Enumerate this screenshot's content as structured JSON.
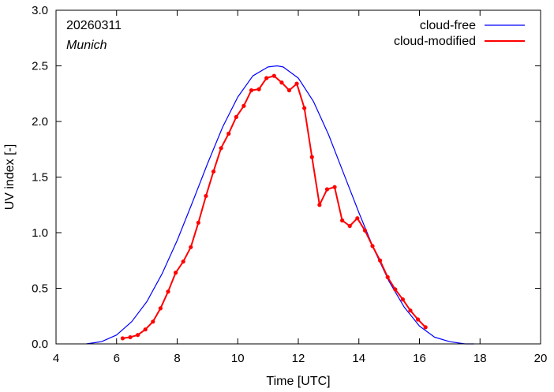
{
  "chart_data": {
    "type": "line",
    "annotations": {
      "date": "20260311",
      "location": "Munich"
    },
    "xlabel": "Time  [UTC]",
    "ylabel": "UV index  [-]",
    "xlim": [
      4,
      20
    ],
    "ylim": [
      0,
      3.0
    ],
    "xticks": [
      "4",
      "6",
      "8",
      "10",
      "12",
      "14",
      "16",
      "18",
      "20"
    ],
    "yticks": [
      "0.0",
      "0.5",
      "1.0",
      "1.5",
      "2.0",
      "2.5",
      "3.0"
    ],
    "grid": false,
    "legend_position": "top-right",
    "series": [
      {
        "name": "cloud-free",
        "color": "#0000ff",
        "marker": "none",
        "x": [
          5.0,
          5.5,
          6.0,
          6.5,
          7.0,
          7.5,
          8.0,
          8.5,
          9.0,
          9.5,
          10.0,
          10.5,
          11.0,
          11.3,
          11.5,
          12.0,
          12.5,
          13.0,
          13.5,
          14.0,
          14.5,
          15.0,
          15.5,
          16.0,
          16.5,
          17.0,
          17.5,
          17.8
        ],
        "y": [
          0.0,
          0.02,
          0.08,
          0.2,
          0.38,
          0.63,
          0.93,
          1.27,
          1.62,
          1.95,
          2.22,
          2.41,
          2.49,
          2.5,
          2.49,
          2.39,
          2.18,
          1.88,
          1.53,
          1.18,
          0.85,
          0.56,
          0.33,
          0.16,
          0.06,
          0.02,
          0.0,
          0.0
        ]
      },
      {
        "name": "cloud-modified",
        "color": "#ff0000",
        "marker": "circle",
        "x": [
          6.2,
          6.45,
          6.7,
          6.95,
          7.2,
          7.45,
          7.7,
          7.95,
          8.2,
          8.45,
          8.7,
          8.95,
          9.2,
          9.45,
          9.7,
          9.95,
          10.2,
          10.45,
          10.7,
          10.95,
          11.2,
          11.45,
          11.7,
          11.95,
          12.2,
          12.45,
          12.7,
          12.95,
          13.2,
          13.45,
          13.7,
          13.95,
          14.2,
          14.45,
          14.7,
          14.95,
          15.2,
          15.45,
          15.7,
          15.95,
          16.2
        ],
        "y": [
          0.05,
          0.06,
          0.08,
          0.13,
          0.2,
          0.32,
          0.47,
          0.64,
          0.74,
          0.87,
          1.09,
          1.33,
          1.55,
          1.76,
          1.89,
          2.04,
          2.14,
          2.28,
          2.29,
          2.39,
          2.41,
          2.35,
          2.28,
          2.34,
          2.12,
          1.68,
          1.25,
          1.39,
          1.41,
          1.11,
          1.06,
          1.13,
          1.02,
          0.88,
          0.75,
          0.6,
          0.49,
          0.4,
          0.3,
          0.22,
          0.15
        ]
      }
    ]
  }
}
